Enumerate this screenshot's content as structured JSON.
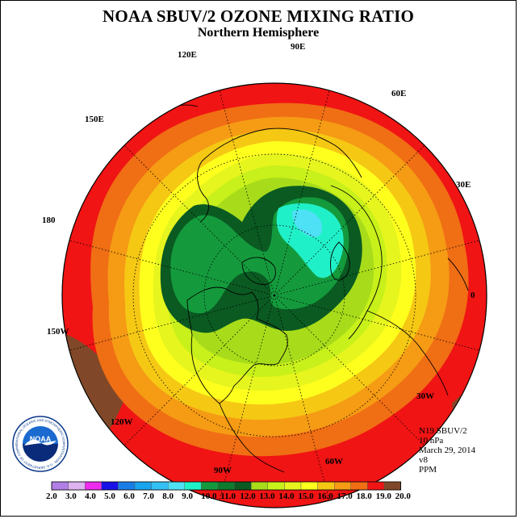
{
  "header": {
    "title": "NOAA SBUV/2 OZONE MIXING RATIO",
    "subtitle": "Northern Hemisphere"
  },
  "longitude_labels": [
    "90E",
    "60E",
    "30E",
    "0",
    "30W",
    "60W",
    "90W",
    "120W",
    "150W",
    "180",
    "150E",
    "120E"
  ],
  "info": {
    "satellite": "N19 SBUV/2",
    "level": "10 hPa",
    "date": "March 29, 2014",
    "version": "v8",
    "units": "PPM"
  },
  "logo": {
    "text": "NOAA",
    "ring_text": "NATIONAL OCEANIC AND ATMOSPHERIC ADMINISTRATION · U.S. DEPARTMENT OF COMMERCE"
  },
  "colorbar": {
    "labels": [
      "2.0",
      "3.0",
      "4.0",
      "5.0",
      "6.0",
      "7.0",
      "8.0",
      "9.0",
      "10.0",
      "11.0",
      "12.0",
      "13.0",
      "14.0",
      "15.0",
      "16.0",
      "17.0",
      "18.0",
      "19.0",
      "20.0"
    ],
    "colors": [
      "#b27fe6",
      "#dcb3f0",
      "#ee2cee",
      "#1a12e6",
      "#1a7de6",
      "#19a5ee",
      "#33c0f5",
      "#4ee0f5",
      "#20f0c8",
      "#149a3c",
      "#0d7a2e",
      "#0a5a22",
      "#a8dc1a",
      "#c8f01a",
      "#e6f51e",
      "#ffff1e",
      "#f5c814",
      "#f59b14",
      "#f06e14",
      "#f01414",
      "#804828"
    ]
  },
  "map": {
    "projection": "north polar stereographic",
    "field_colors": {
      "outer": "#f01414",
      "ring_19": "#f06e14",
      "ring_18": "#f59b14",
      "ring_17": "#f5c814",
      "ring_16": "#ffff1e",
      "ring_15": "#e6f51e",
      "ring_14": "#c8f01a",
      "ring_13": "#a8dc1a",
      "low_12": "#0a5a22",
      "low_11": "#149a3c",
      "low_10": "#20f0c8",
      "low_9": "#4ee0f5",
      "brown_high": "#804828"
    }
  }
}
